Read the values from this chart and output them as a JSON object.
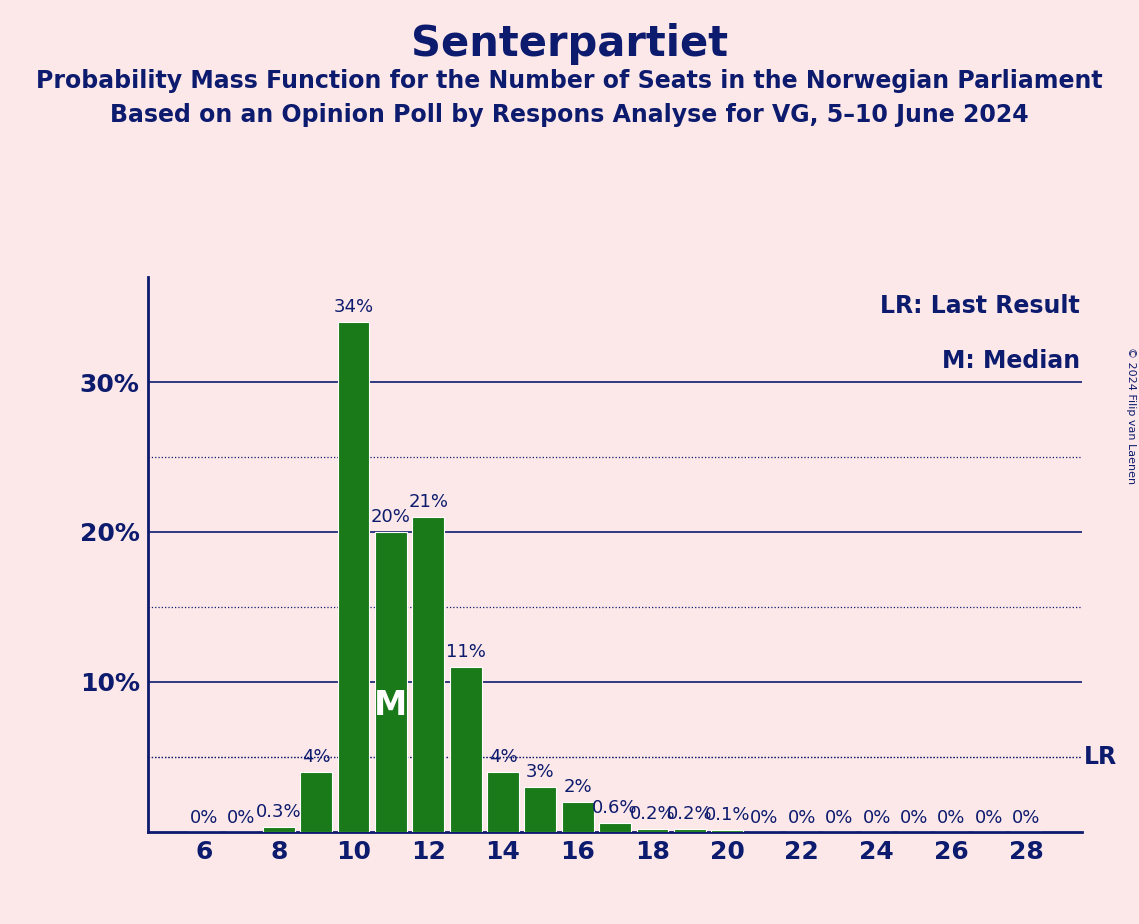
{
  "title": "Senterpartiet",
  "subtitle1": "Probability Mass Function for the Number of Seats in the Norwegian Parliament",
  "subtitle2": "Based on an Opinion Poll by Respons Analyse for VG, 5–10 June 2024",
  "copyright": "© 2024 Filip van Laenen",
  "legend_lr": "LR: Last Result",
  "legend_m": "M: Median",
  "seats": [
    6,
    7,
    8,
    9,
    10,
    11,
    12,
    13,
    14,
    15,
    16,
    17,
    18,
    19,
    20,
    21,
    22,
    23,
    24,
    25,
    26,
    27,
    28
  ],
  "probabilities": [
    0.0,
    0.0,
    0.3,
    4.0,
    34.0,
    20.0,
    21.0,
    11.0,
    4.0,
    3.0,
    2.0,
    0.6,
    0.2,
    0.2,
    0.1,
    0.0,
    0.0,
    0.0,
    0.0,
    0.0,
    0.0,
    0.0,
    0.0
  ],
  "bar_color": "#1a7a1a",
  "bar_edge_color": "#ffffff",
  "background_color": "#fce8e8",
  "text_color": "#0d1b6e",
  "median_seat": 11,
  "lr_value": 5.0,
  "ylim": [
    0,
    37
  ],
  "dotted_yticks": [
    5,
    15,
    25
  ],
  "solid_yticks": [
    10,
    20,
    30
  ],
  "title_fontsize": 30,
  "subtitle_fontsize": 17,
  "tick_fontsize": 18,
  "legend_fontsize": 17,
  "bar_label_fontsize": 13,
  "median_fontsize": 24,
  "copyright_fontsize": 8
}
